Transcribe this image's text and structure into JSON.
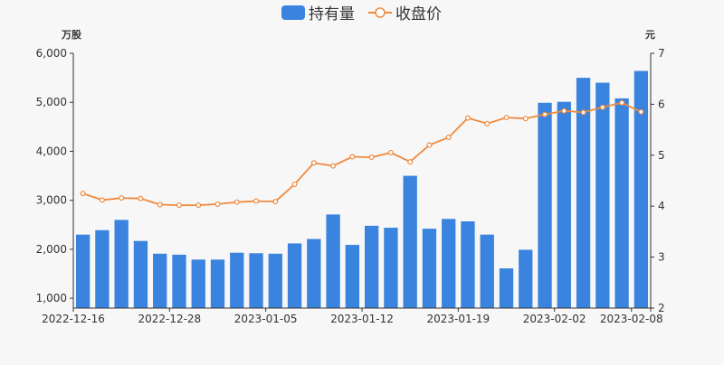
{
  "chart_data": {
    "type": "bar+line",
    "legend": {
      "placement": "top-center",
      "items": [
        {
          "name": "持有量",
          "color": "#3a84e0",
          "kind": "bar"
        },
        {
          "name": "收盘价",
          "color": "#ef8a3e",
          "kind": "line"
        }
      ]
    },
    "yleft": {
      "unit": "万股",
      "min": 800,
      "max": 6000,
      "ticks": [
        1000,
        2000,
        3000,
        4000,
        5000,
        6000
      ],
      "tick_labels": [
        "1,000",
        "2,000",
        "3,000",
        "4,000",
        "5,000",
        "6,000"
      ]
    },
    "yright": {
      "unit": "元",
      "min": 2,
      "max": 7,
      "ticks": [
        2,
        3,
        4,
        5,
        6,
        7
      ],
      "tick_labels": [
        "2",
        "3",
        "4",
        "5",
        "6",
        "7"
      ]
    },
    "x_tick_labels": [
      {
        "index": 0,
        "label": "2022-12-16"
      },
      {
        "index": 5,
        "label": "2022-12-28"
      },
      {
        "index": 10,
        "label": "2023-01-05"
      },
      {
        "index": 15,
        "label": "2023-01-12"
      },
      {
        "index": 20,
        "label": "2023-01-19"
      },
      {
        "index": 25,
        "label": "2023-02-02"
      },
      {
        "index": 29,
        "label": "2023-02-08"
      }
    ],
    "series": [
      {
        "name": "持有量",
        "values": [
          2300,
          2390,
          2600,
          2170,
          1910,
          1890,
          1790,
          1790,
          1930,
          1920,
          1910,
          2120,
          2210,
          2710,
          2090,
          2480,
          2440,
          3500,
          2420,
          2620,
          2570,
          2300,
          1610,
          1990,
          4990,
          5010,
          5500,
          5400,
          5080,
          5640
        ]
      },
      {
        "name": "收盘价",
        "values": [
          4.25,
          4.12,
          4.16,
          4.15,
          4.03,
          4.02,
          4.02,
          4.04,
          4.08,
          4.1,
          4.09,
          4.43,
          4.85,
          4.79,
          4.97,
          4.96,
          5.05,
          4.87,
          5.2,
          5.35,
          5.73,
          5.62,
          5.74,
          5.72,
          5.8,
          5.87,
          5.84,
          5.94,
          6.03,
          5.85
        ]
      }
    ]
  }
}
